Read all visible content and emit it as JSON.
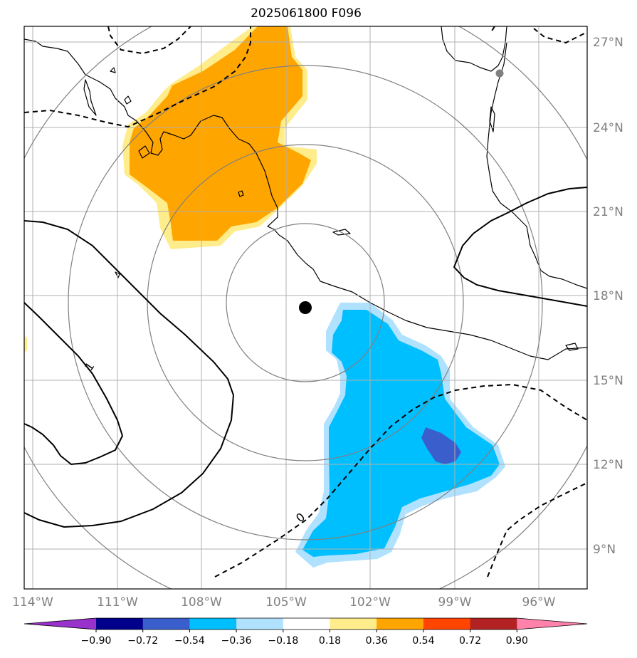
{
  "title": "2025061800 F096",
  "lat_labels": [
    "27°N",
    "24°N",
    "21°N",
    "18°N",
    "15°N",
    "12°N",
    "9°N"
  ],
  "lon_labels": [
    "114°W",
    "111°W",
    "108°W",
    "105°W",
    "102°W",
    "99°W",
    "96°W"
  ],
  "contour_labels": [
    "1",
    "0"
  ],
  "colorbar": {
    "colors": [
      "#9932cc",
      "#00008b",
      "#3a5fcd",
      "#00bfff",
      "#b0e2ff",
      "#ffffff",
      "#ffec8b",
      "#ffa500",
      "#ff4500",
      "#b22222",
      "#ff82ab"
    ],
    "labels": [
      "−0.90",
      "−0.72",
      "−0.54",
      "−0.36",
      "−0.18",
      "0.18",
      "0.36",
      "0.54",
      "0.72",
      "0.90"
    ]
  },
  "colors": {
    "land_outline": "#000000",
    "grid": "#b0b0b0",
    "range_rings": "#808080",
    "positive_anomaly": "#ffa500",
    "negative_anomaly": "#00bfff",
    "strong_negative": "#3a5fcd",
    "center_marker": "#000000"
  }
}
